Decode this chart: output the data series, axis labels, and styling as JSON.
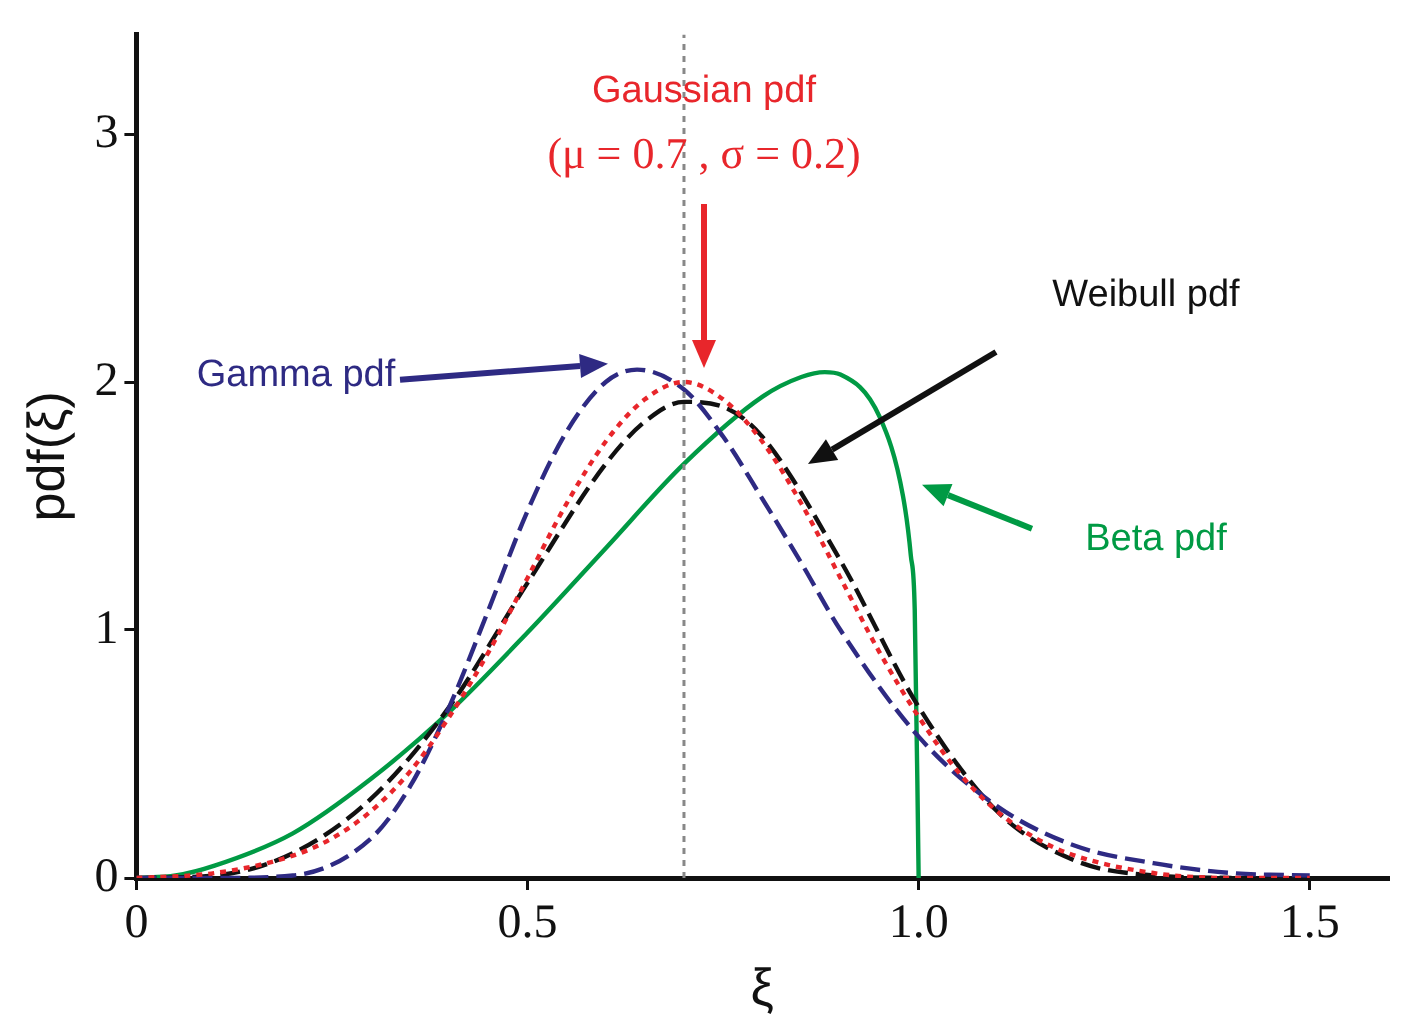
{
  "chart_data": {
    "type": "line",
    "xlabel": "ξ",
    "ylabel": "pdf(ξ)",
    "xlim": [
      0,
      1.6
    ],
    "ylim": [
      0,
      3.4
    ],
    "xticks": [
      0,
      0.5,
      {
        "value": 1,
        "label": "1.0"
      },
      1.5
    ],
    "yticks": [
      0,
      1,
      2,
      3
    ],
    "grid": false,
    "legend": false,
    "marker": "none",
    "series": [
      {
        "color": "#e8262b",
        "line_style": "dotted",
        "x": [
          0,
          0.1,
          0.2,
          0.25,
          0.3,
          0.35,
          0.4,
          0.45,
          0.5,
          0.55,
          0.6,
          0.65,
          0.7,
          0.75,
          0.8,
          0.85,
          0.9,
          0.95,
          1.0,
          1.05,
          1.1,
          1.15,
          1.2,
          1.3,
          1.4,
          1.5
        ],
        "values": [
          0,
          0.02,
          0.09,
          0.16,
          0.27,
          0.43,
          0.65,
          0.91,
          1.21,
          1.51,
          1.76,
          1.93,
          2.0,
          1.93,
          1.76,
          1.51,
          1.21,
          0.91,
          0.65,
          0.43,
          0.27,
          0.16,
          0.09,
          0.02,
          0,
          0
        ]
      },
      {
        "color": "#2e2a83",
        "line_style": "dashed",
        "x": [
          0,
          0.1,
          0.2,
          0.3,
          0.35,
          0.4,
          0.45,
          0.5,
          0.55,
          0.6,
          0.64,
          0.7,
          0.75,
          0.8,
          0.85,
          0.9,
          1.0,
          1.1,
          1.2,
          1.3,
          1.4,
          1.5
        ],
        "values": [
          0,
          0,
          0.01,
          0.16,
          0.37,
          0.69,
          1.08,
          1.48,
          1.8,
          2.0,
          2.05,
          1.97,
          1.78,
          1.53,
          1.27,
          1.0,
          0.57,
          0.29,
          0.13,
          0.06,
          0.02,
          0.01
        ]
      },
      {
        "color": "#111111",
        "line_style": "dashed",
        "x": [
          0,
          0.1,
          0.2,
          0.3,
          0.4,
          0.5,
          0.6,
          0.65,
          0.7,
          0.75,
          0.8,
          0.9,
          1.0,
          1.1,
          1.2,
          1.3,
          1.4
        ],
        "values": [
          0,
          0.01,
          0.1,
          0.32,
          0.69,
          1.19,
          1.67,
          1.84,
          1.92,
          1.9,
          1.78,
          1.28,
          0.69,
          0.27,
          0.07,
          0.01,
          0
        ]
      },
      {
        "color": "#009a44",
        "line_style": "solid",
        "x": [
          0,
          0.05,
          0.1,
          0.2,
          0.3,
          0.4,
          0.5,
          0.6,
          0.7,
          0.8,
          0.85,
          0.88,
          0.9,
          0.95,
          0.98,
          0.99,
          0.995,
          1.0
        ],
        "values": [
          0,
          0.01,
          0.05,
          0.18,
          0.4,
          0.67,
          0.99,
          1.33,
          1.67,
          1.94,
          2.02,
          2.04,
          2.03,
          1.86,
          1.54,
          1.3,
          1.08,
          0
        ]
      }
    ],
    "ref_lines": [
      {
        "axis": "x",
        "value": 0.7,
        "color": "#888888",
        "line_style": "dotted"
      }
    ],
    "annotations": [
      "Gaussian pdf",
      "(μ = 0.7 , σ = 0.2)",
      "Gamma pdf",
      "Weibull pdf",
      "Beta pdf"
    ]
  }
}
